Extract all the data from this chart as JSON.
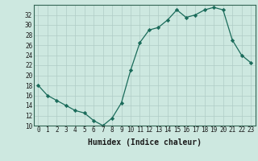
{
  "title": "",
  "xlabel": "Humidex (Indice chaleur)",
  "ylabel": "",
  "x": [
    0,
    1,
    2,
    3,
    4,
    5,
    6,
    7,
    8,
    9,
    10,
    11,
    12,
    13,
    14,
    15,
    16,
    17,
    18,
    19,
    20,
    21,
    22,
    23
  ],
  "y": [
    18,
    16,
    15,
    14,
    13,
    12.5,
    11,
    10,
    11.5,
    14.5,
    21,
    26.5,
    29,
    29.5,
    31,
    33,
    31.5,
    32,
    33,
    33.5,
    33,
    27,
    24,
    22.5
  ],
  "line_color": "#1a6b5a",
  "marker": "D",
  "marker_size": 2.2,
  "bg_color": "#cde8e0",
  "grid_color": "#b0ccc6",
  "ylim": [
    10,
    34
  ],
  "xlim": [
    -0.5,
    23.5
  ],
  "yticks": [
    10,
    12,
    14,
    16,
    18,
    20,
    22,
    24,
    26,
    28,
    30,
    32
  ],
  "xticks": [
    0,
    1,
    2,
    3,
    4,
    5,
    6,
    7,
    8,
    9,
    10,
    11,
    12,
    13,
    14,
    15,
    16,
    17,
    18,
    19,
    20,
    21,
    22,
    23
  ],
  "tick_label_fontsize": 5.5,
  "xlabel_fontsize": 7.0,
  "line_width": 0.9
}
